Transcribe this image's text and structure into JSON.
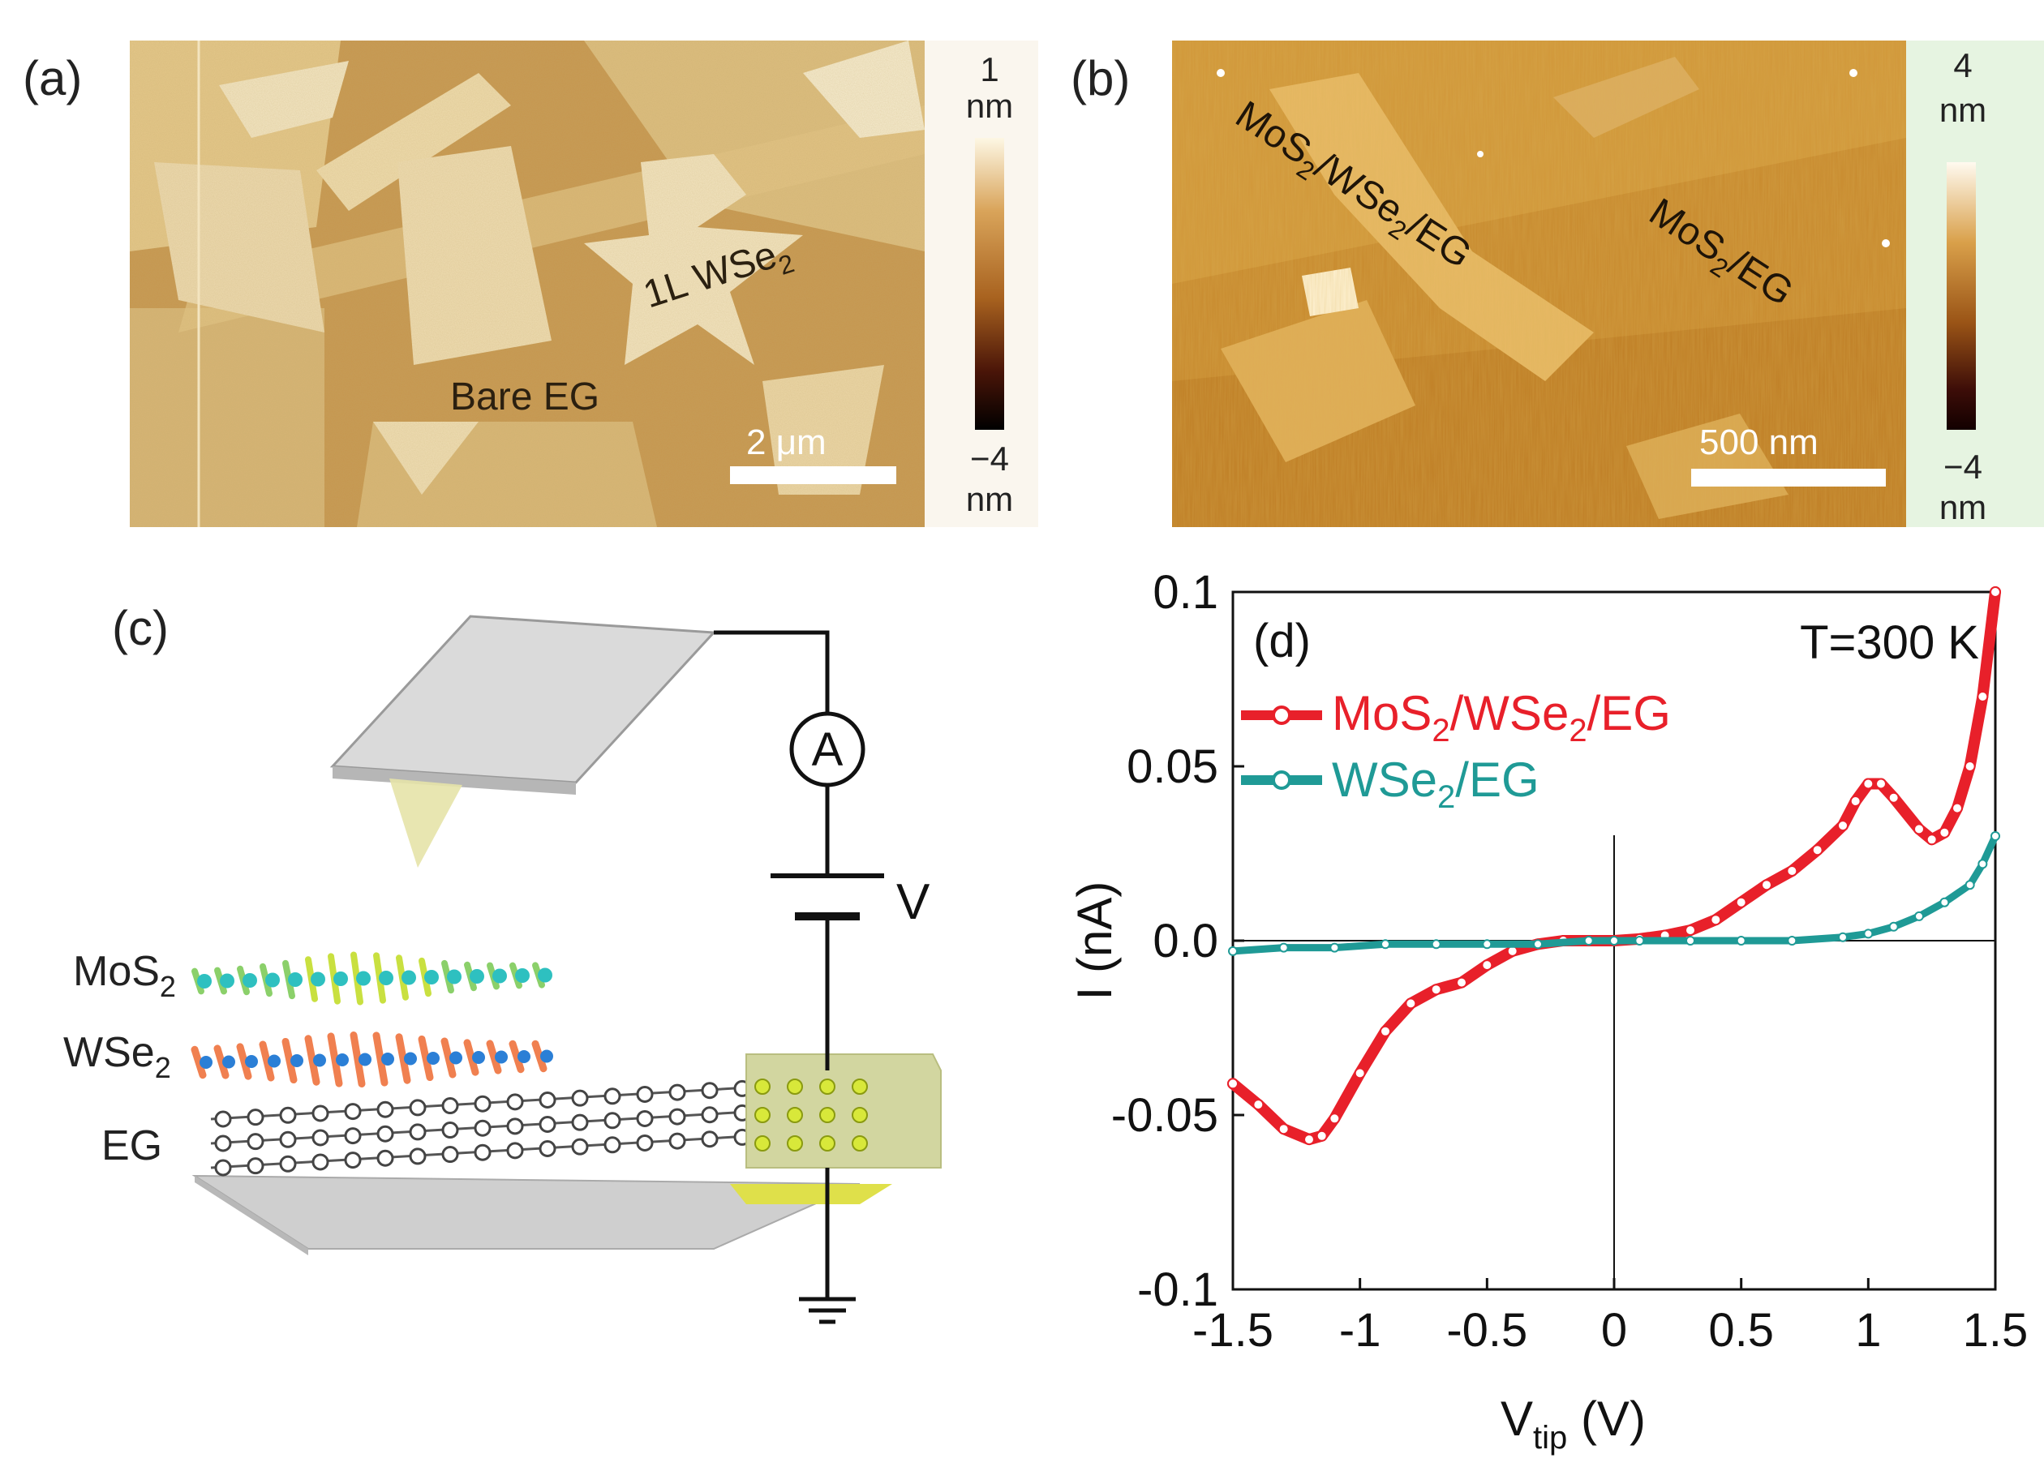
{
  "panel_a": {
    "label": "(a)",
    "annotation_wse2": "1L WSe",
    "annotation_wse2_sub": "2",
    "annotation_eg": "Bare EG",
    "scalebar": "2 μm",
    "colorbar_max": "1",
    "colorbar_max_unit": "nm",
    "colorbar_min": "−4",
    "colorbar_min_unit": "nm"
  },
  "panel_b": {
    "label": "(b)",
    "annotation_hetero_parts": [
      "MoS",
      "2",
      "/WSe",
      "2",
      "/EG"
    ],
    "annotation_mos2_parts": [
      "MoS",
      "2",
      "/EG"
    ],
    "scalebar": "500 nm",
    "colorbar_max": "4",
    "colorbar_max_unit": "nm",
    "colorbar_min": "−4",
    "colorbar_min_unit": "nm"
  },
  "panel_c": {
    "label": "(c)",
    "layer_mos2": "MoS",
    "layer_mos2_sub": "2",
    "layer_wse2": "WSe",
    "layer_wse2_sub": "2",
    "layer_eg": "EG",
    "ammeter": "A",
    "voltage": "V"
  },
  "chart_data": {
    "type": "line",
    "panel_label": "(d)",
    "annotation": "T=300 K",
    "xlabel_main": "V",
    "xlabel_sub": "tip",
    "xlabel_unit": " (V)",
    "ylabel": "I (nA)",
    "xlim": [
      -1.5,
      1.5
    ],
    "ylim": [
      -0.1,
      0.1
    ],
    "xticks": [
      -1.5,
      -1,
      -0.5,
      0,
      0.5,
      1,
      1.5
    ],
    "xtick_labels": [
      "-1.5",
      "-1",
      "-0.5",
      "0",
      "0.5",
      "1",
      "1.5"
    ],
    "yticks": [
      -0.1,
      -0.05,
      0.0,
      0.05,
      0.1
    ],
    "ytick_labels": [
      "-0.1",
      "-0.05",
      "0.0",
      "0.05",
      "0.1"
    ],
    "series": [
      {
        "name": "MoS2/WSe2/EG",
        "legend_parts": [
          "MoS",
          "2",
          "/WSe",
          "2",
          "/EG"
        ],
        "color": "#e8202a",
        "x": [
          -1.5,
          -1.4,
          -1.3,
          -1.2,
          -1.15,
          -1.1,
          -1.0,
          -0.9,
          -0.8,
          -0.7,
          -0.6,
          -0.5,
          -0.4,
          -0.3,
          -0.2,
          -0.1,
          0.0,
          0.1,
          0.2,
          0.3,
          0.4,
          0.5,
          0.6,
          0.7,
          0.8,
          0.9,
          0.95,
          1.0,
          1.05,
          1.1,
          1.2,
          1.25,
          1.3,
          1.35,
          1.4,
          1.45,
          1.5
        ],
        "y": [
          -0.041,
          -0.047,
          -0.054,
          -0.057,
          -0.056,
          -0.051,
          -0.038,
          -0.026,
          -0.018,
          -0.014,
          -0.012,
          -0.007,
          -0.003,
          -0.001,
          0.0,
          0.0,
          0.0,
          0.0005,
          0.0015,
          0.003,
          0.006,
          0.011,
          0.016,
          0.02,
          0.026,
          0.033,
          0.04,
          0.045,
          0.045,
          0.041,
          0.032,
          0.029,
          0.031,
          0.038,
          0.05,
          0.07,
          0.1
        ]
      },
      {
        "name": "WSe2/EG",
        "legend_parts": [
          "WSe",
          "2",
          "/EG"
        ],
        "color": "#1f9a96",
        "x": [
          -1.5,
          -1.3,
          -1.1,
          -0.9,
          -0.7,
          -0.5,
          -0.3,
          -0.1,
          0.0,
          0.1,
          0.3,
          0.5,
          0.7,
          0.9,
          1.0,
          1.1,
          1.2,
          1.3,
          1.4,
          1.45,
          1.5
        ],
        "y": [
          -0.003,
          -0.002,
          -0.002,
          -0.001,
          -0.001,
          -0.001,
          -0.001,
          0.0,
          0.0,
          0.0,
          0.0,
          0.0,
          0.0,
          0.001,
          0.002,
          0.004,
          0.007,
          0.011,
          0.016,
          0.022,
          0.03
        ]
      }
    ]
  }
}
